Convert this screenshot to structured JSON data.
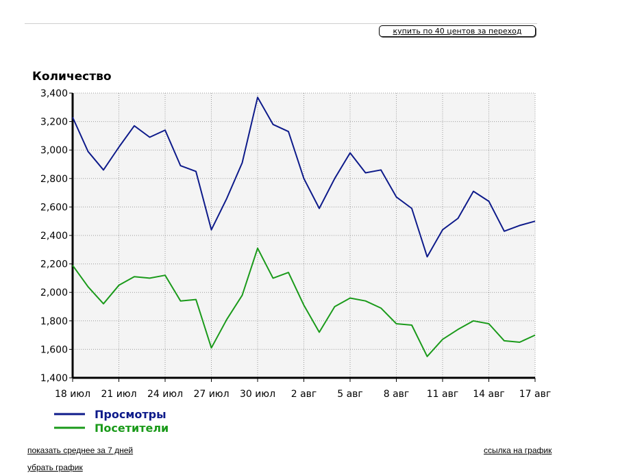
{
  "buy_button_label": "купить по 40 центов за переход",
  "links": {
    "show_average": "показать среднее за 7 дней",
    "remove_chart": "убрать график",
    "chart_link": "ссылка на график"
  },
  "chart_data": {
    "type": "line",
    "ylabel": "Количество",
    "ylim": [
      1400,
      3400
    ],
    "yticks": [
      1400,
      1600,
      1800,
      2000,
      2200,
      2400,
      2600,
      2800,
      3000,
      3200,
      3400
    ],
    "ytick_labels": [
      "1,400",
      "1,600",
      "1,800",
      "2,000",
      "2,200",
      "2,400",
      "2,600",
      "2,800",
      "3,000",
      "3,200",
      "3,400"
    ],
    "x": [
      "18 июл",
      "19 июл",
      "20 июл",
      "21 июл",
      "22 июл",
      "23 июл",
      "24 июл",
      "25 июл",
      "26 июл",
      "27 июл",
      "28 июл",
      "29 июл",
      "30 июл",
      "31 июл",
      "1 авг",
      "2 авг",
      "3 авг",
      "4 авг",
      "5 авг",
      "6 авг",
      "7 авг",
      "8 авг",
      "9 авг",
      "10 авг",
      "11 авг",
      "12 авг",
      "13 авг",
      "14 авг",
      "15 авг",
      "16 авг",
      "17 авг"
    ],
    "xtick_labels": [
      "18 июл",
      "21 июл",
      "24 июл",
      "27 июл",
      "30 июл",
      "2 авг",
      "5 авг",
      "8 авг",
      "11 авг",
      "14 авг",
      "17 авг"
    ],
    "grid": true,
    "legend_position": "bottom-left",
    "series": [
      {
        "name": "Просмотры",
        "color": "#0d1a8a",
        "values": [
          3230,
          2990,
          2860,
          3020,
          3170,
          3090,
          3140,
          2890,
          2850,
          2440,
          2660,
          2910,
          3370,
          3180,
          3130,
          2800,
          2590,
          2800,
          2980,
          2840,
          2860,
          2670,
          2590,
          2250,
          2440,
          2520,
          2710,
          2640,
          2430,
          2470,
          2500
        ]
      },
      {
        "name": "Посетители",
        "color": "#1a9a1a",
        "values": [
          2190,
          2040,
          1920,
          2050,
          2110,
          2100,
          2120,
          1940,
          1950,
          1610,
          1810,
          1980,
          2310,
          2100,
          2140,
          1910,
          1720,
          1900,
          1960,
          1940,
          1890,
          1780,
          1770,
          1550,
          1670,
          1740,
          1800,
          1780,
          1660,
          1650,
          1700
        ]
      }
    ]
  }
}
